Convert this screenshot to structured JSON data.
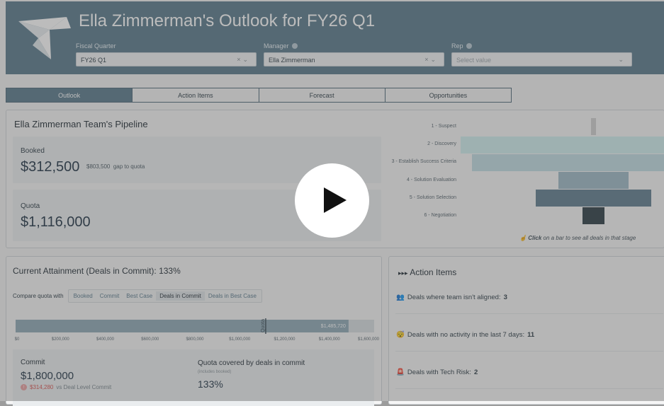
{
  "header": {
    "title": "Ella Zimmerman's Outlook for FY26 Q1",
    "filters": [
      {
        "label": "Fiscal Quarter",
        "value": "FY26 Q1",
        "has_info": false
      },
      {
        "label": "Manager",
        "value": "Ella Zimmerman",
        "has_info": true
      },
      {
        "label": "Rep",
        "value": "",
        "placeholder": "Select value",
        "has_info": true
      }
    ],
    "clear_icon": "×",
    "dropdown_icon": "⌄"
  },
  "tabs": [
    {
      "label": "Outlook",
      "active": true
    },
    {
      "label": "Action Items",
      "active": false
    },
    {
      "label": "Forecast",
      "active": false
    },
    {
      "label": "Opportunities",
      "active": false
    }
  ],
  "pipeline": {
    "title": "Ella Zimmerman Team's Pipeline",
    "booked_label": "Booked",
    "booked_value": "$312,500",
    "gap_value": "$803,500",
    "gap_text": "gap to quota",
    "quota_label": "Quota",
    "quota_value": "$1,116,000",
    "stages": [
      {
        "label": "1 - Suspect",
        "color": "#cfcfcf"
      },
      {
        "label": "2 - Discovery",
        "color": "#cfeeed"
      },
      {
        "label": "3 - Establish Success Criteria",
        "color": "#c0dbe3"
      },
      {
        "label": "4 - Solution Evaluation",
        "color": "#9db9c6"
      },
      {
        "label": "5 - Solution Selection",
        "color": "#5f7d8e"
      },
      {
        "label": "6 - Negotiation",
        "color": "#2d3d45"
      }
    ],
    "hint_bold": "Click",
    "hint_rest": "on a bar to see all deals in that stage"
  },
  "attainment": {
    "title": "Current Attainment (Deals in Commit): 133%",
    "compare_label": "Compare quota with",
    "options": [
      "Booked",
      "Commit",
      "Best Case",
      "Deals in Commit",
      "Deals in Best Case"
    ],
    "selected_option": "Deals in Commit",
    "bar_value_label": "$1,485,720",
    "quota_marker": "Quota",
    "chart_data": {
      "type": "bar",
      "x_ticks": [
        "$0",
        "$200,000",
        "$400,000",
        "$600,000",
        "$800,000",
        "$1,000,000",
        "$1,200,000",
        "$1,400,000",
        "$1,600,000"
      ],
      "bar_value": 1485720,
      "quota": 1116000,
      "xlim": [
        0,
        1600000
      ]
    },
    "commit_label": "Commit",
    "commit_value": "$1,800,000",
    "commit_delta": "$314,280",
    "commit_delta_text": "vs Deal Level Commit",
    "covered_label": "Quota covered by deals in commit",
    "covered_note": "(includes booked)",
    "covered_value": "133%"
  },
  "actions": {
    "title": "Action Items",
    "title_prefix": "▸▸▸",
    "items": [
      {
        "icon": "👥",
        "text": "Deals where team isn't aligned:",
        "count": "3"
      },
      {
        "icon": "😴",
        "text": "Deals with no activity in the last 7 days:",
        "count": "11"
      },
      {
        "icon": "🚨",
        "text": "Deals with Tech Risk:",
        "count": "2"
      }
    ]
  },
  "colors": {
    "header": "#5a7a8c",
    "accent": "#5a7a8c",
    "delta": "#d9534f"
  }
}
